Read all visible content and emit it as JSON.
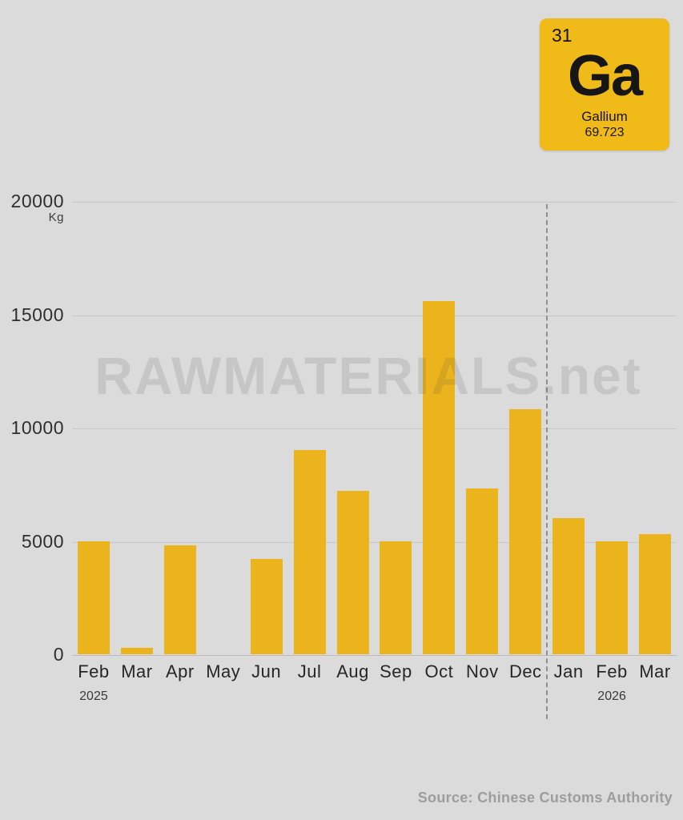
{
  "element_card": {
    "atomic_number": "31",
    "symbol": "Ga",
    "name": "Gallium",
    "atomic_mass": "69.723",
    "bg_color": "#F0BA18"
  },
  "watermark": "RAWMATERIALS.net",
  "source": "Source: Chinese Customs Authority",
  "chart_data": {
    "type": "bar",
    "title": "",
    "ylabel": "Kg",
    "unit_label": "Kg",
    "categories": [
      "Feb",
      "Mar",
      "Apr",
      "May",
      "Jun",
      "Jul",
      "Aug",
      "Sep",
      "Oct",
      "Nov",
      "Dec",
      "Jan",
      "Feb",
      "Mar"
    ],
    "values": [
      5000,
      300,
      4800,
      0,
      4200,
      9000,
      7200,
      5000,
      15600,
      7300,
      10800,
      6000,
      5000,
      5300
    ],
    "year_labels": [
      {
        "index": 0,
        "label": "2025"
      },
      {
        "index": 12,
        "label": "2026"
      }
    ],
    "y_ticks": [
      0,
      5000,
      10000,
      15000,
      20000
    ],
    "ylim": [
      0,
      20000
    ],
    "grid": true,
    "legend": "none",
    "bar_color": "#ECB41C",
    "divider_after_index": 10
  }
}
